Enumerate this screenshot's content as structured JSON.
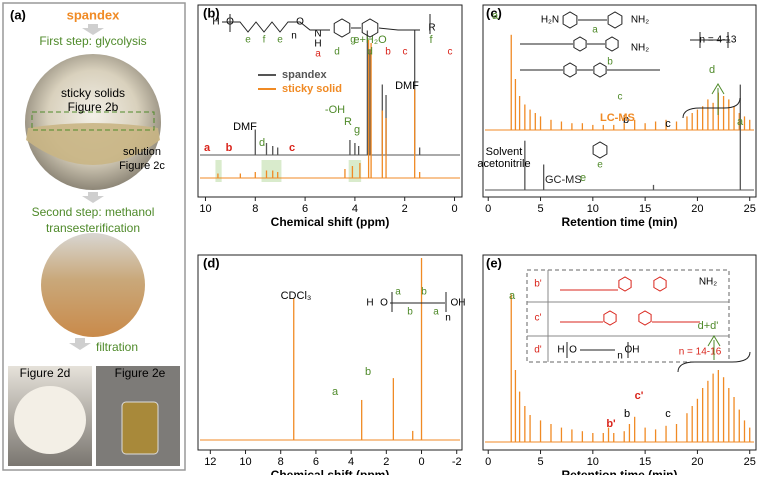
{
  "panel_a": {
    "label": "(a)",
    "title": "spandex",
    "first_step": "First step: glycolysis",
    "photo1_labels": [
      "sticky solids",
      "Figure 2b",
      "solution",
      "Figure 2c"
    ],
    "second_step": [
      "Second step: methanol",
      "transesterification"
    ],
    "third_step": "filtration",
    "photo3_labels": [
      "Figure 2d",
      "Figure 2e"
    ]
  },
  "chart_data": [
    {
      "type": "spectrum",
      "panel": "(b)",
      "xlabel": "Chemical shift (ppm)",
      "xlim": [
        10.3,
        -0.3
      ],
      "xticks": [
        10,
        8,
        6,
        4,
        2,
        0
      ],
      "ylim": [
        0,
        100
      ],
      "series": [
        {
          "name": "spandex",
          "color": "#555555",
          "x": [
            8.0,
            7.55,
            7.3,
            7.1,
            4.2,
            4.0,
            3.85,
            3.5,
            3.4,
            2.9,
            2.75,
            1.6,
            1.4
          ],
          "values": [
            17,
            8,
            6,
            5,
            10,
            8,
            6,
            83,
            70,
            47,
            40,
            83,
            5
          ]
        },
        {
          "name": "sticky solid",
          "color": "#f08a24",
          "x": [
            9.5,
            8.6,
            8.0,
            7.55,
            7.3,
            7.1,
            4.4,
            4.1,
            3.8,
            3.45,
            3.35,
            2.9,
            2.75,
            1.6,
            1.4
          ],
          "values": [
            3,
            3,
            4,
            5,
            5,
            4,
            6,
            8,
            10,
            92,
            90,
            45,
            40,
            59,
            4
          ]
        }
      ],
      "annotations": [
        "a",
        "b",
        "DMF",
        "d",
        "c",
        "-OH",
        "R",
        "g",
        "e+H₂O",
        "f",
        "DMF"
      ],
      "structure_labels": [
        "H",
        "O",
        "e",
        "f",
        "e",
        "n",
        "O",
        "N",
        "H",
        "a",
        "d",
        "g",
        "d",
        "b",
        "c",
        "R",
        "c"
      ]
    },
    {
      "type": "spectrum",
      "panel": "(c)",
      "xlabel": "Retention time (min)",
      "xlim": [
        -0.5,
        25.6
      ],
      "xticks": [
        0,
        5,
        10,
        15,
        20,
        25
      ],
      "ylim": [
        0,
        100
      ],
      "series": [
        {
          "name": "LC-MS",
          "color": "#f08a24",
          "x": [
            2.2,
            2.6,
            3,
            3.5,
            4,
            4.5,
            5,
            6,
            7,
            8,
            9,
            10,
            11,
            12,
            13,
            14,
            15,
            16,
            17,
            18,
            19,
            19.5,
            20,
            20.5,
            21,
            21.5,
            22,
            22.5,
            23,
            23.5,
            24,
            24.5,
            25
          ],
          "values": [
            56,
            30,
            20,
            15,
            12,
            10,
            8,
            6,
            5,
            4,
            4,
            3,
            3,
            3,
            4,
            6,
            4,
            5,
            6,
            5,
            8,
            10,
            12,
            14,
            18,
            16,
            22,
            20,
            18,
            14,
            10,
            8,
            6
          ]
        },
        {
          "name": "GC-MS",
          "color": "#555555",
          "x": [
            3.5,
            5.3,
            15.8,
            24.1
          ],
          "values": [
            29,
            15,
            3,
            62
          ]
        }
      ],
      "annotations": [
        "a",
        "b",
        "c",
        "d",
        "Solvent",
        "acetonitrile",
        "e",
        "a"
      ],
      "structure_labels": [
        "H₂N",
        "NH₂",
        "a",
        "NH₂",
        "b",
        "c",
        "n = 4-13",
        "e"
      ]
    },
    {
      "type": "spectrum",
      "panel": "(d)",
      "xlabel": "Chemical shift (ppm)",
      "xlim": [
        12.7,
        -2.3
      ],
      "xticks": [
        12,
        10,
        8,
        6,
        4,
        2,
        0,
        -2
      ],
      "ylim": [
        0,
        100
      ],
      "series": [
        {
          "color": "#f08a24",
          "x": [
            7.26,
            3.4,
            1.6,
            0.5,
            0
          ],
          "values": [
            78,
            22,
            34,
            5,
            100
          ]
        }
      ],
      "annotations": [
        "CDCl₃",
        "a",
        "b"
      ],
      "structure_labels": [
        "H",
        "O",
        "a",
        "b",
        "b",
        "a",
        "n",
        "OH"
      ]
    },
    {
      "type": "spectrum",
      "panel": "(e)",
      "xlabel": "Retention time (min)",
      "xlim": [
        -0.5,
        25.6
      ],
      "xticks": [
        0,
        5,
        10,
        15,
        20,
        25
      ],
      "ylim": [
        0,
        100
      ],
      "series": [
        {
          "color": "#f08a24",
          "x": [
            2.2,
            2.6,
            3,
            3.5,
            4,
            5,
            6,
            7,
            8,
            9,
            10,
            11,
            11.5,
            12,
            13,
            13.5,
            14,
            15,
            16,
            17,
            18,
            19,
            19.5,
            20,
            20.5,
            21,
            21.5,
            22,
            22.5,
            23,
            23.5,
            24,
            24.5,
            25
          ],
          "values": [
            82,
            40,
            28,
            20,
            15,
            12,
            10,
            8,
            7,
            6,
            5,
            5,
            8,
            5,
            6,
            10,
            14,
            8,
            7,
            9,
            10,
            16,
            20,
            24,
            30,
            34,
            38,
            40,
            36,
            30,
            25,
            18,
            12,
            8
          ]
        }
      ],
      "annotations": [
        "a",
        "b'",
        "b",
        "c'",
        "c",
        "d+d'"
      ],
      "structure_labels": [
        "b'",
        "c'",
        "d'",
        "NH₂",
        "n = 14-16",
        "H",
        "O",
        "n",
        "OH"
      ]
    }
  ]
}
